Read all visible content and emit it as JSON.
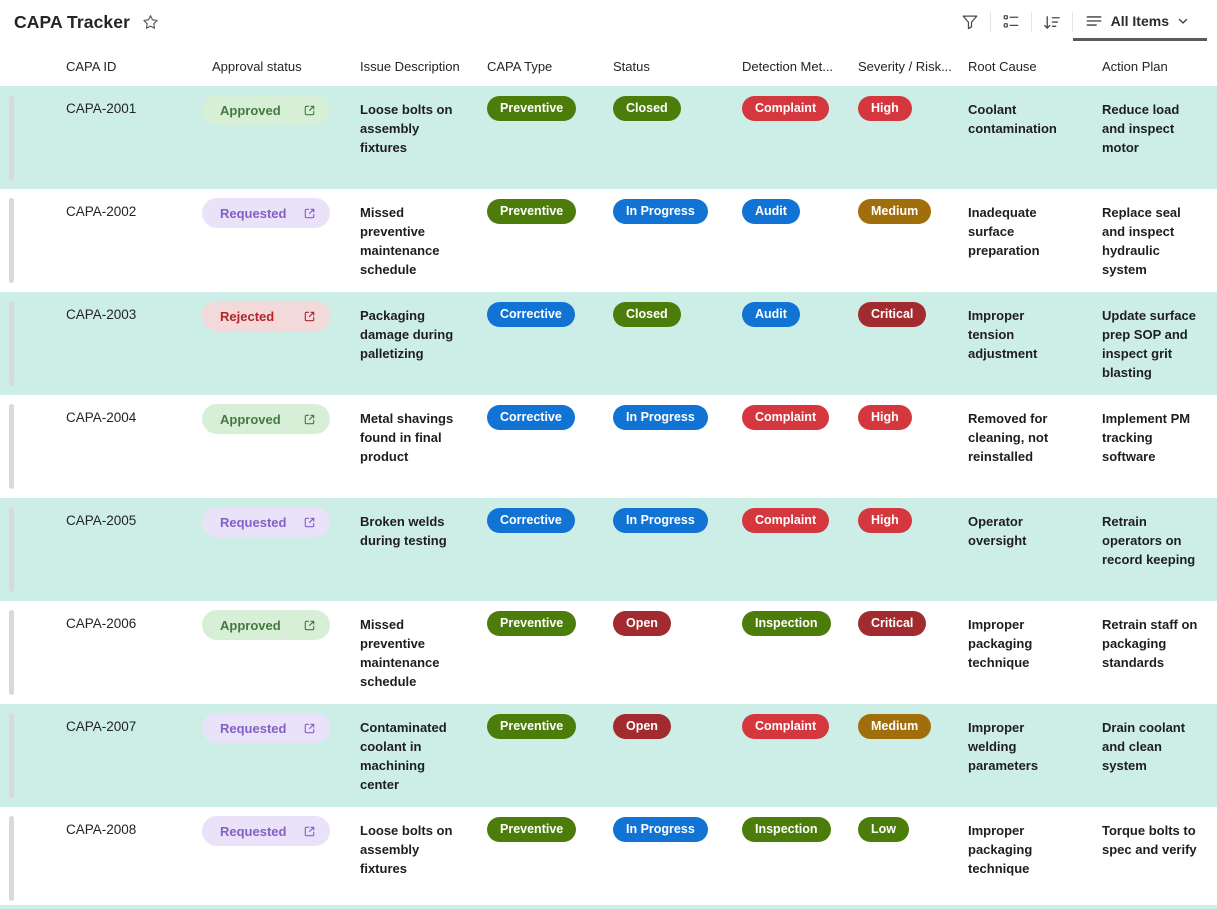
{
  "header": {
    "title": "CAPA Tracker",
    "view_label": "All Items"
  },
  "toolbar": {
    "icons": [
      "filter-icon",
      "group-list-icon",
      "sort-descending-icon",
      "list-view-icon",
      "chevron-down-icon"
    ]
  },
  "columns": [
    "CAPA ID",
    "Approval status",
    "Issue Description",
    "CAPA Type",
    "Status",
    "Detection Met...",
    "Severity / Risk...",
    "Root Cause",
    "Action Plan"
  ],
  "rows": [
    {
      "id": "CAPA-2001",
      "approval": "Approved",
      "issue": "Loose bolts on assembly fixtures",
      "type": "Preventive",
      "status": "Closed",
      "detection": "Complaint",
      "severity": "High",
      "root_cause": "Coolant contamination",
      "action_plan": "Reduce load and inspect motor"
    },
    {
      "id": "CAPA-2002",
      "approval": "Requested",
      "issue": "Missed preventive maintenance schedule",
      "type": "Preventive",
      "status": "In Progress",
      "detection": "Audit",
      "severity": "Medium",
      "root_cause": "Inadequate surface preparation",
      "action_plan": "Replace seal and inspect hydraulic system"
    },
    {
      "id": "CAPA-2003",
      "approval": "Rejected",
      "issue": "Packaging damage during palletizing",
      "type": "Corrective",
      "status": "Closed",
      "detection": "Audit",
      "severity": "Critical",
      "root_cause": "Improper tension adjustment",
      "action_plan": "Update surface prep SOP and inspect grit blasting"
    },
    {
      "id": "CAPA-2004",
      "approval": "Approved",
      "issue": "Metal shavings found in final product",
      "type": "Corrective",
      "status": "In Progress",
      "detection": "Complaint",
      "severity": "High",
      "root_cause": "Removed for cleaning, not reinstalled",
      "action_plan": "Implement PM tracking software"
    },
    {
      "id": "CAPA-2005",
      "approval": "Requested",
      "issue": "Broken welds during testing",
      "type": "Corrective",
      "status": "In Progress",
      "detection": "Complaint",
      "severity": "High",
      "root_cause": "Operator oversight",
      "action_plan": "Retrain operators on record keeping"
    },
    {
      "id": "CAPA-2006",
      "approval": "Approved",
      "issue": "Missed preventive maintenance schedule",
      "type": "Preventive",
      "status": "Open",
      "detection": "Inspection",
      "severity": "Critical",
      "root_cause": "Improper packaging technique",
      "action_plan": "Retrain staff on packaging standards"
    },
    {
      "id": "CAPA-2007",
      "approval": "Requested",
      "issue": "Contaminated coolant in machining center",
      "type": "Preventive",
      "status": "Open",
      "detection": "Complaint",
      "severity": "Medium",
      "root_cause": "Improper welding parameters",
      "action_plan": "Drain coolant and clean system"
    },
    {
      "id": "CAPA-2008",
      "approval": "Requested",
      "issue": "Loose bolts on assembly fixtures",
      "type": "Preventive",
      "status": "In Progress",
      "detection": "Inspection",
      "severity": "Low",
      "root_cause": "Improper packaging technique",
      "action_plan": "Torque bolts to spec and verify"
    }
  ],
  "colors": {
    "row_alt_bg": "#cdeee6",
    "pills": {
      "Preventive": "#4c7d0b",
      "Corrective": "#1173d4",
      "Closed": "#4c7d0b",
      "In Progress": "#1173d4",
      "Open": "#a22b30",
      "Complaint": "#d4383e",
      "Audit": "#1173d4",
      "Inspection": "#4c7d0b",
      "High": "#d4383e",
      "Medium": "#a16e0c",
      "Critical": "#a22b30",
      "Low": "#4c7d0b"
    },
    "approval": {
      "Approved": {
        "bg": "#d7efd7",
        "fg": "#447a3f"
      },
      "Requested": {
        "bg": "#e9e2f8",
        "fg": "#8460c5"
      },
      "Rejected": {
        "bg": "#f3d9da",
        "fg": "#b0262b"
      }
    }
  }
}
